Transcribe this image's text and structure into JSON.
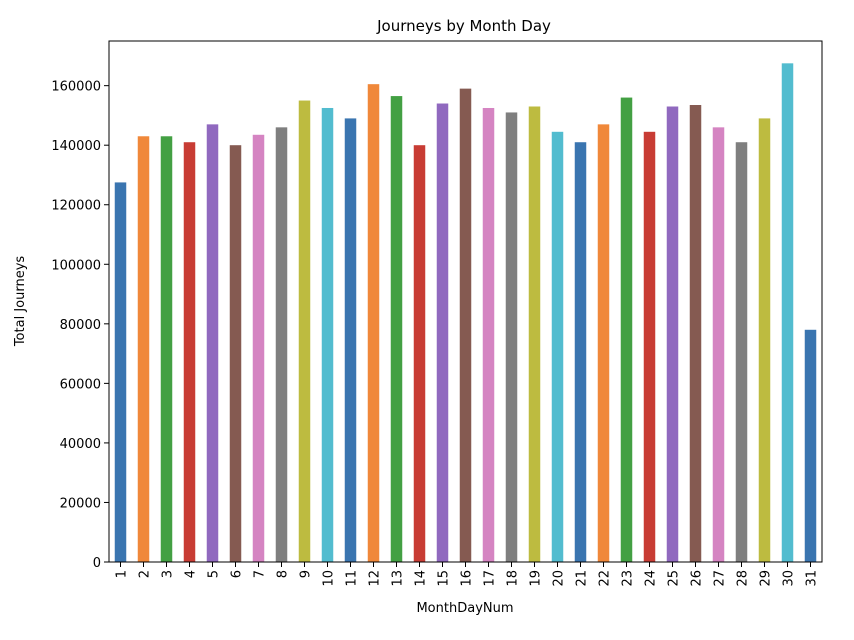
{
  "chart_data": {
    "type": "bar",
    "title": "Journeys by Month Day",
    "xlabel": "MonthDayNum",
    "ylabel": "Total Journeys",
    "categories": [
      "1",
      "2",
      "3",
      "4",
      "5",
      "6",
      "7",
      "8",
      "9",
      "10",
      "11",
      "12",
      "13",
      "14",
      "15",
      "16",
      "17",
      "18",
      "19",
      "20",
      "21",
      "22",
      "23",
      "24",
      "25",
      "26",
      "27",
      "28",
      "29",
      "30",
      "31"
    ],
    "values": [
      127500,
      143000,
      143000,
      141000,
      147000,
      140000,
      143500,
      146000,
      155000,
      152500,
      149000,
      160500,
      156500,
      140000,
      154000,
      159000,
      152500,
      151000,
      153000,
      144500,
      141000,
      147000,
      156000,
      144500,
      153000,
      153500,
      146000,
      141000,
      149000,
      167500,
      78000
    ],
    "colors": [
      "#3a75b0",
      "#f0883a",
      "#43a043",
      "#c83c34",
      "#9069bf",
      "#855a51",
      "#d584c2",
      "#7f7f7f",
      "#bdbb40",
      "#52bccf"
    ],
    "ylim": [
      0,
      175000
    ],
    "yticks": [
      0,
      20000,
      40000,
      60000,
      80000,
      100000,
      120000,
      140000,
      160000
    ],
    "ytick_labels": [
      "0",
      "20000",
      "40000",
      "60000",
      "80000",
      "100000",
      "120000",
      "140000",
      "160000"
    ],
    "grid": false,
    "legend": "none"
  }
}
